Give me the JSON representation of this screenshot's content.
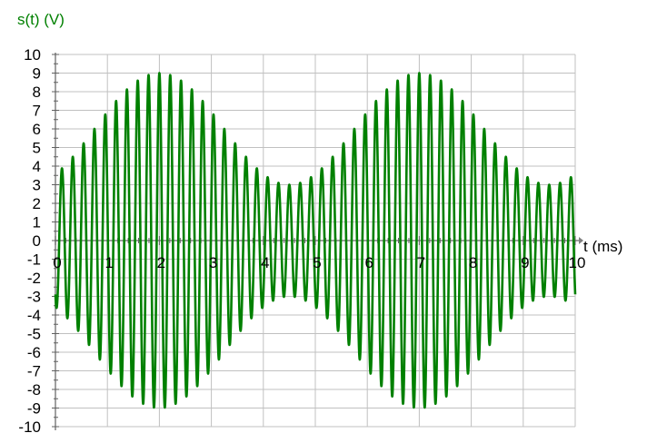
{
  "chart_data": {
    "type": "line",
    "title": "",
    "ylabel": "s(t) (V)",
    "xlabel": "t (ms)",
    "xlim": [
      0,
      10
    ],
    "ylim": [
      -10,
      10
    ],
    "x_ticks": [
      "0",
      "1",
      "2",
      "3",
      "4",
      "5",
      "6",
      "7",
      "8",
      "9",
      "10"
    ],
    "y_ticks": [
      "10",
      "9",
      "8",
      "7",
      "6",
      "5",
      "4",
      "3",
      "2",
      "1",
      "0",
      "-1",
      "-2",
      "-3",
      "-4",
      "-5",
      "-6",
      "-7",
      "-8",
      "-9",
      "-10"
    ],
    "grid": true,
    "series": [
      {
        "envelope_peaks_v": [
          [
            2,
            9.0
          ],
          [
            4.5,
            3.0
          ],
          [
            7,
            9.0
          ]
        ],
        "carrier_cycles_per_ms": 4.8,
        "color": "#008000"
      }
    ],
    "colors": {
      "curve": "#008000",
      "axis_label": "#008000",
      "grid": "#c0c0c0",
      "axis": "#808080",
      "ticks": "#000000"
    }
  }
}
